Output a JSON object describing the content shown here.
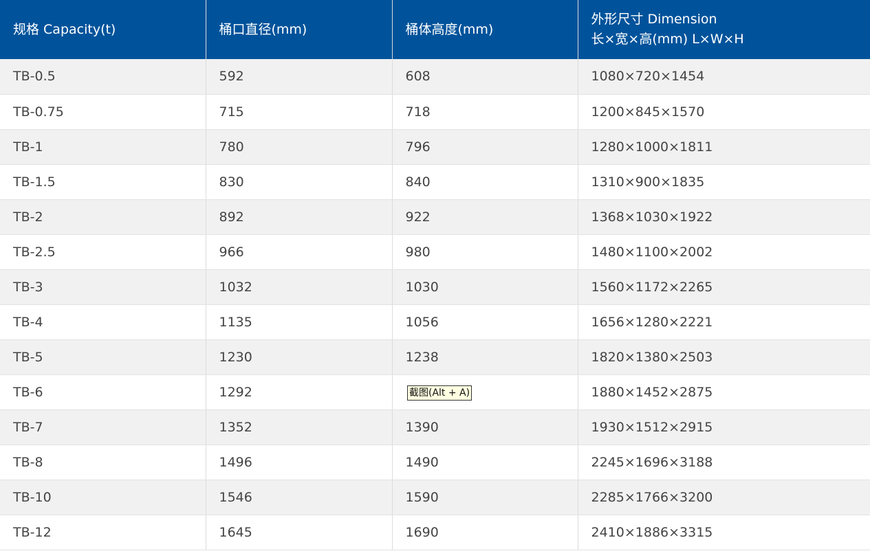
{
  "header": {
    "capacity": "规格 Capacity(t)",
    "mouth_diameter": "桶口直径(mm)",
    "body_height": "桶体高度(mm)",
    "dimension_line1": "外形尺寸 Dimension",
    "dimension_line2": "长×宽×高(mm) L×W×H"
  },
  "rows": [
    {
      "model": "TB-0.5",
      "diameter": "592",
      "height": "608",
      "dimension": "1080×720×1454"
    },
    {
      "model": "TB-0.75",
      "diameter": "715",
      "height": "718",
      "dimension": "1200×845×1570"
    },
    {
      "model": "TB-1",
      "diameter": "780",
      "height": "796",
      "dimension": "1280×1000×1811"
    },
    {
      "model": "TB-1.5",
      "diameter": "830",
      "height": "840",
      "dimension": "1310×900×1835"
    },
    {
      "model": "TB-2",
      "diameter": "892",
      "height": "922",
      "dimension": "1368×1030×1922"
    },
    {
      "model": "TB-2.5",
      "diameter": "966",
      "height": "980",
      "dimension": "1480×1100×2002"
    },
    {
      "model": "TB-3",
      "diameter": "1032",
      "height": "1030",
      "dimension": "1560×1172×2265"
    },
    {
      "model": "TB-4",
      "diameter": "1135",
      "height": "1056",
      "dimension": "1656×1280×2221"
    },
    {
      "model": "TB-5",
      "diameter": "1230",
      "height": "1238",
      "dimension": "1820×1380×2503"
    },
    {
      "model": "TB-6",
      "diameter": "1292",
      "height": "",
      "dimension": "1880×1452×2875"
    },
    {
      "model": "TB-7",
      "diameter": "1352",
      "height": "1390",
      "dimension": "1930×1512×2915"
    },
    {
      "model": "TB-8",
      "diameter": "1496",
      "height": "1490",
      "dimension": "2245×1696×3188"
    },
    {
      "model": "TB-10",
      "diameter": "1546",
      "height": "1590",
      "dimension": "2285×1766×3200"
    },
    {
      "model": "TB-12",
      "diameter": "1645",
      "height": "1690",
      "dimension": "2410×1886×3315"
    }
  ],
  "tooltip": {
    "text": "截图(Alt + A)"
  },
  "colors": {
    "header_bg": "#00539b",
    "header_text": "#ffffff",
    "row_alt_bg": "#f1f1f1",
    "cell_text": "#444444",
    "tooltip_bg": "#ffffe1"
  }
}
